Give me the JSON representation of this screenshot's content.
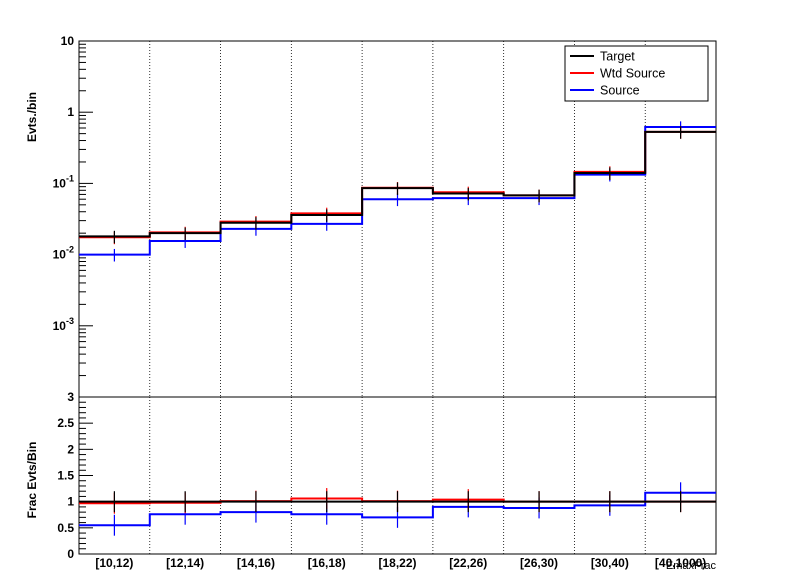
{
  "chart_data": [
    {
      "type": "line",
      "panel": "main",
      "ylabel": "Evts./bin",
      "yscale": "log",
      "ylim": [
        0.0001,
        10
      ],
      "yticks": [
        {
          "value": 10,
          "base": "10",
          "exp": ""
        },
        {
          "value": 1,
          "base": "1",
          "exp": ""
        },
        {
          "value": 0.1,
          "base": "10",
          "exp": "-1"
        },
        {
          "value": 0.01,
          "base": "10",
          "exp": "-2"
        },
        {
          "value": 0.001,
          "base": "10",
          "exp": "-3"
        }
      ],
      "categories": [
        "[10,12)",
        "[12,14)",
        "[14,16)",
        "[16,18)",
        "[18,22)",
        "[22,26)",
        "[26,30)",
        "[30,40)",
        "[40,1000)"
      ],
      "series": [
        {
          "name": "Target",
          "color": "#000000",
          "values": [
            0.018,
            0.02,
            0.028,
            0.036,
            0.086,
            0.072,
            0.068,
            0.14,
            0.53
          ]
        },
        {
          "name": "Wtd Source",
          "color": "#ff0000",
          "values": [
            0.0175,
            0.0205,
            0.029,
            0.038,
            0.087,
            0.075,
            0.068,
            0.145,
            0.53
          ]
        },
        {
          "name": "Source",
          "color": "#0000ff",
          "values": [
            0.01,
            0.0155,
            0.023,
            0.027,
            0.06,
            0.062,
            0.062,
            0.133,
            0.62
          ]
        }
      ],
      "grid": "vertical dotted",
      "legend": "top-right"
    },
    {
      "type": "line",
      "panel": "ratio",
      "ylabel": "Frac Evts/Bin",
      "xlabel": "EmaxFrac",
      "ylim": [
        0,
        3
      ],
      "yticks": [
        "0",
        "0.5",
        "1",
        "1.5",
        "2",
        "2.5",
        "3"
      ],
      "categories": [
        "[10,12)",
        "[12,14)",
        "[14,16)",
        "[16,18)",
        "[18,22)",
        "[22,26)",
        "[26,30)",
        "[30,40)",
        "[40,1000)"
      ],
      "series": [
        {
          "name": "Target",
          "color": "#000000",
          "values": [
            1.0,
            1.0,
            1.0,
            1.0,
            1.0,
            1.0,
            1.0,
            1.0,
            1.0
          ]
        },
        {
          "name": "Wtd Source",
          "color": "#ff0000",
          "values": [
            0.97,
            0.98,
            1.01,
            1.06,
            1.01,
            1.04,
            1.0,
            1.0,
            1.0
          ]
        },
        {
          "name": "Source",
          "color": "#0000ff",
          "values": [
            0.55,
            0.76,
            0.8,
            0.76,
            0.7,
            0.9,
            0.88,
            0.93,
            1.17
          ]
        }
      ],
      "grid": "vertical dotted"
    }
  ]
}
